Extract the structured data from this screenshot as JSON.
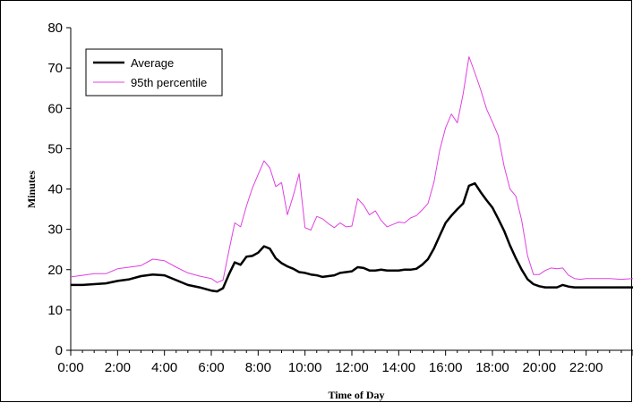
{
  "chart_data": {
    "type": "line",
    "title": "",
    "xlabel": "Time of Day",
    "ylabel": "Minutes",
    "xlim": [
      0,
      24
    ],
    "ylim": [
      0,
      80
    ],
    "yticks": [
      0,
      10,
      20,
      30,
      40,
      50,
      60,
      70,
      80
    ],
    "xtick_labels": [
      "0:00",
      "2:00",
      "4:00",
      "6:00",
      "8:00",
      "10:00",
      "12:00",
      "14:00",
      "16:00",
      "18:00",
      "20:00",
      "22:00"
    ],
    "grid": false,
    "legend_position": "top-left",
    "x": [
      0,
      0.5,
      1,
      1.5,
      2,
      2.5,
      3,
      3.5,
      4,
      4.5,
      5,
      5.5,
      6,
      6.25,
      6.5,
      6.75,
      7,
      7.25,
      7.5,
      7.75,
      8,
      8.25,
      8.5,
      8.75,
      9,
      9.25,
      9.5,
      9.75,
      10,
      10.25,
      10.5,
      10.75,
      11,
      11.25,
      11.5,
      11.75,
      12,
      12.25,
      12.5,
      12.75,
      13,
      13.25,
      13.5,
      13.75,
      14,
      14.25,
      14.5,
      14.75,
      15,
      15.25,
      15.5,
      15.75,
      16,
      16.25,
      16.5,
      16.75,
      17,
      17.25,
      17.5,
      17.75,
      18,
      18.25,
      18.5,
      18.75,
      19,
      19.25,
      19.5,
      19.75,
      20,
      20.25,
      20.5,
      20.75,
      21,
      21.25,
      21.5,
      21.75,
      22,
      22.5,
      23,
      23.5,
      24
    ],
    "series": [
      {
        "name": "Average",
        "color": "#000000",
        "values": [
          16.2,
          16.2,
          16.4,
          16.6,
          17.2,
          17.6,
          18.4,
          18.8,
          18.6,
          17.4,
          16.2,
          15.6,
          14.8,
          14.6,
          15.4,
          18.8,
          21.8,
          21.2,
          23.2,
          23.4,
          24.2,
          25.8,
          25.2,
          22.8,
          21.6,
          20.8,
          20.2,
          19.4,
          19.2,
          18.8,
          18.6,
          18.2,
          18.4,
          18.6,
          19.2,
          19.4,
          19.6,
          20.6,
          20.4,
          19.8,
          19.8,
          20.0,
          19.8,
          19.8,
          19.8,
          20.0,
          20.0,
          20.2,
          21.2,
          22.6,
          25.2,
          28.4,
          31.6,
          33.4,
          35.0,
          36.4,
          40.8,
          41.4,
          39.2,
          37.2,
          35.4,
          32.6,
          29.6,
          26.0,
          22.8,
          20.0,
          17.6,
          16.4,
          15.9,
          15.6,
          15.6,
          15.6,
          16.2,
          15.8,
          15.6,
          15.6,
          15.6,
          15.6,
          15.6,
          15.6,
          15.6
        ]
      },
      {
        "name": "95th percentile",
        "color": "#e040e0",
        "values": [
          18.2,
          18.6,
          19.0,
          19.0,
          20.2,
          20.6,
          21.0,
          22.6,
          22.2,
          20.6,
          19.2,
          18.4,
          17.8,
          16.8,
          17.4,
          24.6,
          31.6,
          30.6,
          35.8,
          40.2,
          43.6,
          47.0,
          45.2,
          40.6,
          41.6,
          33.6,
          38.4,
          43.8,
          30.4,
          29.8,
          33.2,
          32.6,
          31.4,
          30.4,
          31.6,
          30.6,
          30.8,
          37.6,
          36.0,
          33.6,
          34.6,
          32.2,
          30.6,
          31.2,
          31.8,
          31.6,
          32.8,
          33.4,
          34.8,
          36.4,
          41.6,
          49.6,
          55.2,
          58.6,
          56.4,
          63.6,
          72.8,
          68.8,
          64.6,
          59.8,
          56.6,
          53.2,
          45.6,
          40.0,
          38.2,
          32.2,
          23.4,
          18.8,
          18.8,
          19.8,
          20.4,
          20.2,
          20.4,
          18.6,
          17.8,
          17.6,
          17.8,
          17.8,
          17.8,
          17.6,
          17.8
        ]
      }
    ]
  }
}
